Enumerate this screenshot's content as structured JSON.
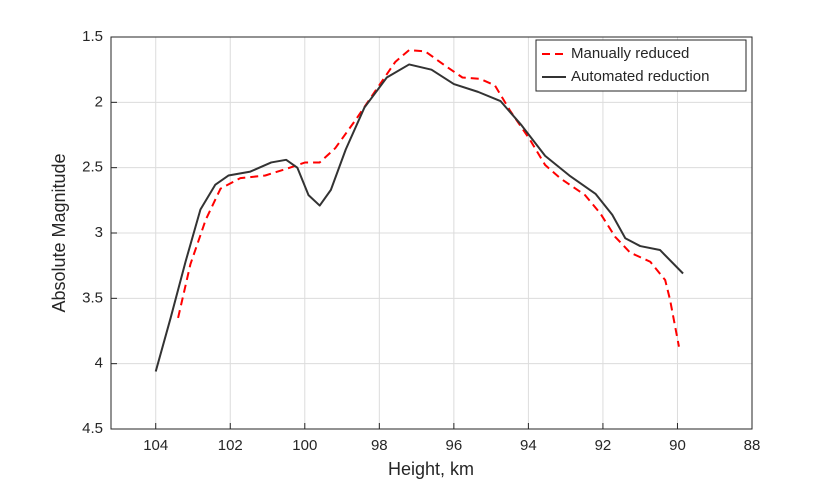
{
  "chart_data": {
    "type": "line",
    "xlabel": "Height, km",
    "ylabel": "Absolute Magnitude",
    "xlim": [
      105.2,
      88
    ],
    "xticks": [
      104,
      102,
      100,
      98,
      96,
      94,
      92,
      90,
      88
    ],
    "ylim": [
      4.5,
      1.5
    ],
    "yticks": [
      1.5,
      2,
      2.5,
      3,
      3.5,
      4,
      4.5
    ],
    "grid": true,
    "legend": "top-right",
    "series": [
      {
        "name": "Manually reduced",
        "color": "#ff0000",
        "dash": true,
        "x": [
          103.4,
          103.07,
          102.66,
          102.26,
          101.73,
          101.06,
          100.4,
          99.99,
          99.6,
          99.18,
          98.65,
          98.1,
          97.57,
          97.2,
          96.77,
          96.23,
          95.77,
          95.3,
          94.9,
          94.5,
          93.95,
          93.55,
          93.15,
          92.48,
          92.07,
          91.67,
          91.27,
          90.73,
          90.33,
          90.2,
          89.96
        ],
        "values": [
          3.65,
          3.24,
          2.9,
          2.66,
          2.58,
          2.56,
          2.5,
          2.46,
          2.46,
          2.35,
          2.14,
          1.91,
          1.69,
          1.6,
          1.61,
          1.72,
          1.81,
          1.82,
          1.87,
          2.06,
          2.29,
          2.48,
          2.58,
          2.71,
          2.85,
          3.03,
          3.15,
          3.22,
          3.36,
          3.51,
          3.87
        ]
      },
      {
        "name": "Automated reduction",
        "color": "#333333",
        "dash": false,
        "x": [
          104.0,
          103.6,
          103.2,
          102.8,
          102.4,
          102.05,
          101.46,
          100.9,
          100.5,
          100.2,
          99.9,
          99.6,
          99.3,
          98.9,
          98.4,
          97.8,
          97.2,
          96.6,
          96.0,
          95.35,
          94.75,
          94.2,
          93.55,
          92.9,
          92.2,
          91.75,
          91.4,
          91.0,
          90.47,
          89.85
        ],
        "values": [
          4.06,
          3.65,
          3.22,
          2.82,
          2.63,
          2.56,
          2.53,
          2.46,
          2.44,
          2.5,
          2.71,
          2.79,
          2.67,
          2.36,
          2.04,
          1.81,
          1.71,
          1.75,
          1.86,
          1.92,
          1.99,
          2.17,
          2.41,
          2.56,
          2.7,
          2.86,
          3.04,
          3.1,
          3.13,
          3.31
        ]
      }
    ]
  }
}
